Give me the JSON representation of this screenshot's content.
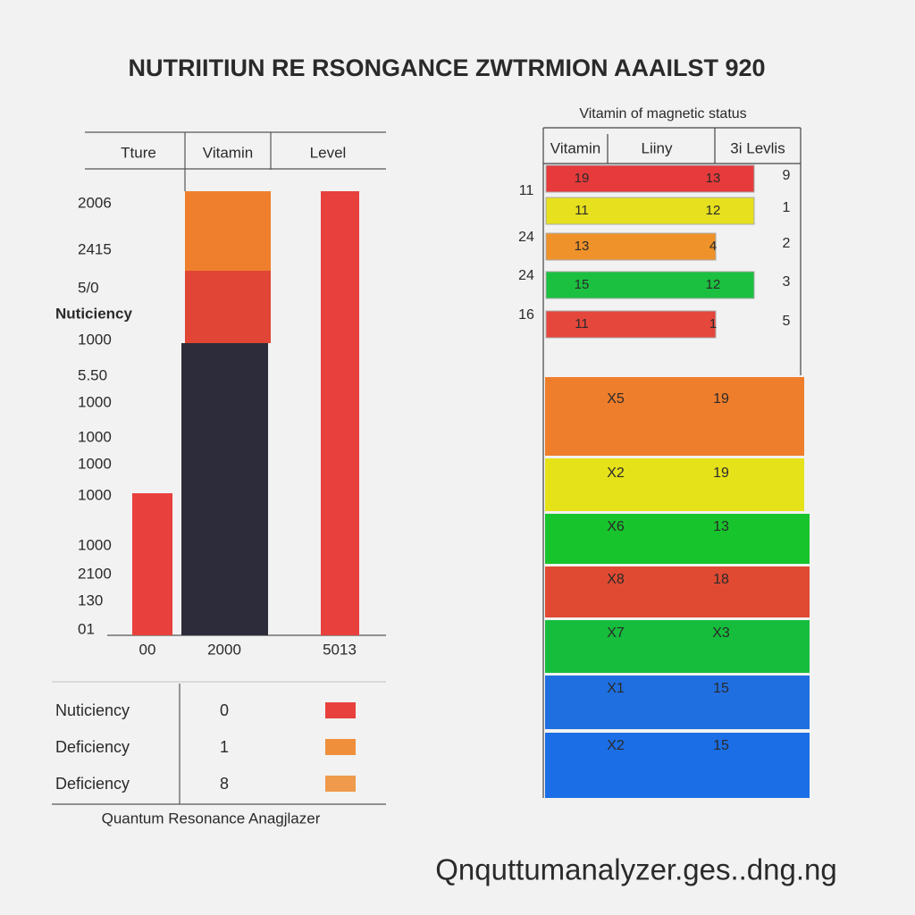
{
  "title": "NUTRIITIUN RE RSONGANCE ZWTRMION AAAILST 920",
  "left_panel": {
    "header": [
      "Tture",
      "Vitamin",
      "Level"
    ],
    "y_labels": [
      "2006",
      "2415",
      "5/0",
      "Nuticiency",
      "1000",
      "5.50",
      "1000",
      "1000",
      "1000",
      "1000",
      "1000",
      "2100",
      "130",
      "01"
    ],
    "x_labels": [
      "00",
      "2000",
      "5013"
    ],
    "legend": [
      [
        "Nuticiency",
        "0"
      ],
      [
        "Deficiency",
        "1"
      ],
      [
        "Deficiency",
        "8"
      ]
    ],
    "footer": "Quantum Resonance Anagjlazer"
  },
  "right_panel": {
    "title": "Vitamin of magnetic status",
    "header": [
      "Vitamin",
      "Liiny",
      "3i Levlis"
    ],
    "rows": [
      {
        "a": "19",
        "b": "13",
        "right": "9"
      },
      {
        "left": "11",
        "a": "11",
        "b": "12",
        "right": "1"
      },
      {
        "left": "24",
        "a": "13",
        "b": "4",
        "right": "2"
      },
      {
        "left": "24",
        "a": "15",
        "b": "12",
        "right": "3"
      },
      {
        "left": "16",
        "a": "11",
        "b": "1",
        "right": "5"
      }
    ],
    "bands": [
      [
        "X5",
        "19"
      ],
      [
        "X2",
        "19"
      ],
      [
        "X6",
        "13"
      ],
      [
        "X8",
        "18"
      ],
      [
        "X7",
        "X3"
      ],
      [
        "X1",
        "15"
      ],
      [
        "X2",
        "15"
      ]
    ]
  },
  "watermark": "Qnquttumanalyzer.ges..dng.ng"
}
